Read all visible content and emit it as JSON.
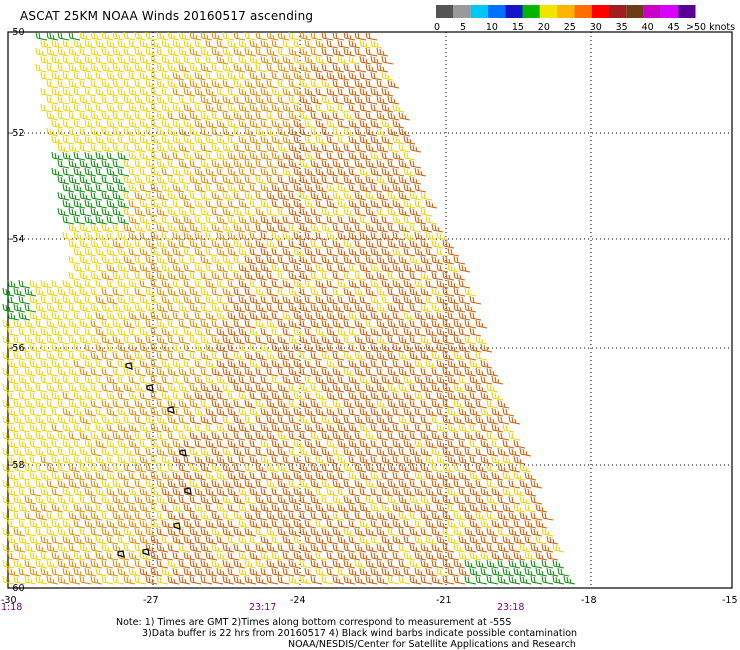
{
  "title": "ASCAT 25KM NOAA Winds 20160517 ascending",
  "legend": {
    "unit_label": ">50 knots",
    "labels": [
      "0",
      "5",
      "10",
      "15",
      "20",
      "25",
      "30",
      "35",
      "40",
      "45"
    ],
    "colors": [
      "#555555",
      "#9a9a9a",
      "#00c8f5",
      "#0070ff",
      "#1414c8",
      "#00b400",
      "#f0e600",
      "#ffb400",
      "#ff6e00",
      "#ff0000",
      "#a01e1e",
      "#6e3c14",
      "#c800c8",
      "#dc00ff",
      "#5a0096"
    ]
  },
  "axes": {
    "lat_labels": [
      "-50",
      "-52",
      "-54",
      "-56",
      "-58",
      "-60"
    ],
    "lon_labels": [
      "-27",
      "-24",
      "-21",
      "-18",
      "-15"
    ],
    "corner_labels": [
      "-30",
      "1:18"
    ]
  },
  "times": [
    "23:17",
    "23:18"
  ],
  "notes": [
    "Note: 1) Times are GMT 2)Times along bottom correspond to measurement at -55S",
    "3)Data buffer is 22 hrs from 20160517 4) Black wind barbs indicate possible contamination",
    "NOAA/NESDIS/Center for Satellite Applications and Research"
  ],
  "colors": {
    "barb_yellow": "#f0d200",
    "barb_orange": "#e08a00",
    "barb_darkorange": "#d25a00",
    "barb_green": "#0a8c0a",
    "time_purple": "#800080"
  }
}
